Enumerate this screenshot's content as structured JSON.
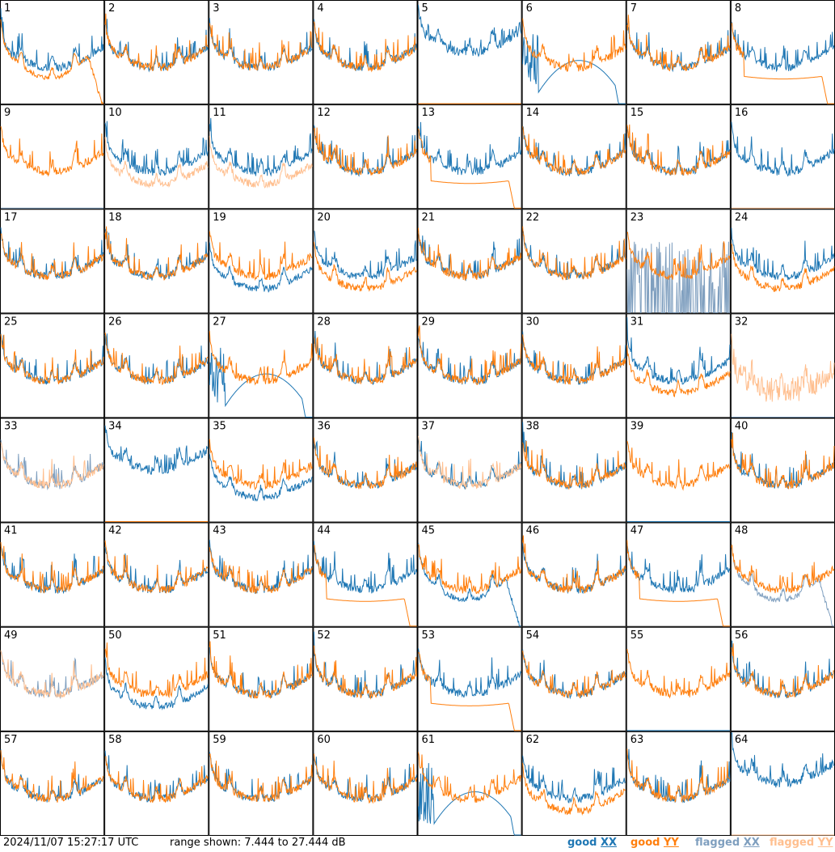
{
  "footer": {
    "timestamp": "2024/11/07 15:27:17 UTC",
    "range_text": "range shown: 7.444 to 27.444 dB"
  },
  "legend": [
    {
      "key": "good",
      "pol": "XX",
      "color": "#1f77b4"
    },
    {
      "key": "good",
      "pol": "YY",
      "color": "#ff7f0e"
    },
    {
      "key": "flagged",
      "pol": "XX",
      "color": "#7f9fbf"
    },
    {
      "key": "flagged",
      "pol": "YY",
      "color": "#ffbf8f"
    }
  ],
  "colors": {
    "good_xx": "#1f77b4",
    "good_yy": "#ff7f0e",
    "flagged_xx": "#7f9fbf",
    "flagged_yy": "#ffbf8f",
    "border": "#000000"
  },
  "chart_data": {
    "type": "line",
    "layout": "8x8 small multiples, one panel per antenna",
    "y_range_db": [
      7.444,
      27.444
    ],
    "x_axis": "frequency channel (unlabeled)",
    "series_names": [
      "XX",
      "YY"
    ],
    "panels": [
      {
        "label": "1",
        "xx": "good",
        "yy": "good",
        "xx_profile": "bandpass",
        "yy_profile": "sag_dropout"
      },
      {
        "label": "2",
        "xx": "good",
        "yy": "good",
        "xx_profile": "bandpass",
        "yy_profile": "bandpass"
      },
      {
        "label": "3",
        "xx": "good",
        "yy": "good",
        "xx_profile": "bandpass",
        "yy_profile": "bandpass"
      },
      {
        "label": "4",
        "xx": "good",
        "yy": "good",
        "xx_profile": "bandpass",
        "yy_profile": "bandpass"
      },
      {
        "label": "5",
        "xx": "good",
        "yy": "good",
        "xx_profile": "bandpass_high",
        "yy_profile": "spikes"
      },
      {
        "label": "6",
        "xx": "good",
        "yy": "good",
        "xx_profile": "broken_arc",
        "yy_profile": "bandpass"
      },
      {
        "label": "7",
        "xx": "good",
        "yy": "good",
        "xx_profile": "bandpass",
        "yy_profile": "bandpass"
      },
      {
        "label": "8",
        "xx": "good",
        "yy": "good",
        "xx_profile": "bandpass",
        "yy_profile": "flat_dropout"
      },
      {
        "label": "9",
        "xx": "flagged",
        "yy": "good",
        "xx_profile": "spikes",
        "yy_profile": "bandpass"
      },
      {
        "label": "10",
        "xx": "good",
        "yy": "flagged",
        "xx_profile": "bandpass",
        "yy_profile": "bandpass_low"
      },
      {
        "label": "11",
        "xx": "good",
        "yy": "flagged",
        "xx_profile": "bandpass",
        "yy_profile": "bandpass_low"
      },
      {
        "label": "12",
        "xx": "good",
        "yy": "good",
        "xx_profile": "bandpass",
        "yy_profile": "bandpass"
      },
      {
        "label": "13",
        "xx": "good",
        "yy": "good",
        "xx_profile": "bandpass",
        "yy_profile": "flat_dropout"
      },
      {
        "label": "14",
        "xx": "good",
        "yy": "good",
        "xx_profile": "bandpass",
        "yy_profile": "bandpass"
      },
      {
        "label": "15",
        "xx": "good",
        "yy": "good",
        "xx_profile": "bandpass",
        "yy_profile": "bandpass"
      },
      {
        "label": "16",
        "xx": "good",
        "yy": "flagged",
        "xx_profile": "bandpass",
        "yy_profile": "spikes"
      },
      {
        "label": "17",
        "xx": "good",
        "yy": "good",
        "xx_profile": "bandpass",
        "yy_profile": "bandpass"
      },
      {
        "label": "18",
        "xx": "good",
        "yy": "good",
        "xx_profile": "bandpass",
        "yy_profile": "bandpass"
      },
      {
        "label": "19",
        "xx": "good",
        "yy": "good",
        "xx_profile": "bandpass_low",
        "yy_profile": "bandpass"
      },
      {
        "label": "20",
        "xx": "good",
        "yy": "good",
        "xx_profile": "bandpass",
        "yy_profile": "bandpass_low"
      },
      {
        "label": "21",
        "xx": "good",
        "yy": "good",
        "xx_profile": "bandpass",
        "yy_profile": "bandpass"
      },
      {
        "label": "22",
        "xx": "good",
        "yy": "good",
        "xx_profile": "bandpass",
        "yy_profile": "bandpass"
      },
      {
        "label": "23",
        "xx": "flagged",
        "yy": "good",
        "xx_profile": "dense_spikes",
        "yy_profile": "bandpass"
      },
      {
        "label": "24",
        "xx": "good",
        "yy": "good",
        "xx_profile": "bandpass",
        "yy_profile": "bandpass_low"
      },
      {
        "label": "25",
        "xx": "good",
        "yy": "good",
        "xx_profile": "bandpass",
        "yy_profile": "bandpass"
      },
      {
        "label": "26",
        "xx": "good",
        "yy": "good",
        "xx_profile": "bandpass",
        "yy_profile": "bandpass"
      },
      {
        "label": "27",
        "xx": "good",
        "yy": "good",
        "xx_profile": "broken_arc",
        "yy_profile": "bandpass"
      },
      {
        "label": "28",
        "xx": "good",
        "yy": "good",
        "xx_profile": "bandpass",
        "yy_profile": "bandpass"
      },
      {
        "label": "29",
        "xx": "good",
        "yy": "good",
        "xx_profile": "bandpass",
        "yy_profile": "bandpass"
      },
      {
        "label": "30",
        "xx": "good",
        "yy": "good",
        "xx_profile": "bandpass",
        "yy_profile": "bandpass"
      },
      {
        "label": "31",
        "xx": "good",
        "yy": "good",
        "xx_profile": "bandpass",
        "yy_profile": "bandpass_low"
      },
      {
        "label": "32",
        "xx": "flagged",
        "yy": "flagged",
        "xx_profile": "spikes",
        "yy_profile": "bandpass_noisy"
      },
      {
        "label": "33",
        "xx": "flagged",
        "yy": "flagged",
        "xx_profile": "bandpass",
        "yy_profile": "bandpass"
      },
      {
        "label": "34",
        "xx": "good",
        "yy": "good",
        "xx_profile": "bandpass_high",
        "yy_profile": "spikes"
      },
      {
        "label": "35",
        "xx": "good",
        "yy": "good",
        "xx_profile": "bandpass_low",
        "yy_profile": "bandpass"
      },
      {
        "label": "36",
        "xx": "good",
        "yy": "good",
        "xx_profile": "bandpass",
        "yy_profile": "bandpass"
      },
      {
        "label": "37",
        "xx": "good",
        "yy": "flagged",
        "xx_profile": "bandpass",
        "yy_profile": "bandpass"
      },
      {
        "label": "38",
        "xx": "good",
        "yy": "good",
        "xx_profile": "bandpass",
        "yy_profile": "bandpass"
      },
      {
        "label": "39",
        "xx": "good",
        "yy": "good",
        "xx_profile": "spikes",
        "yy_profile": "bandpass"
      },
      {
        "label": "40",
        "xx": "good",
        "yy": "good",
        "xx_profile": "bandpass",
        "yy_profile": "bandpass"
      },
      {
        "label": "41",
        "xx": "good",
        "yy": "good",
        "xx_profile": "bandpass",
        "yy_profile": "bandpass"
      },
      {
        "label": "42",
        "xx": "good",
        "yy": "good",
        "xx_profile": "bandpass",
        "yy_profile": "bandpass"
      },
      {
        "label": "43",
        "xx": "good",
        "yy": "good",
        "xx_profile": "bandpass",
        "yy_profile": "bandpass"
      },
      {
        "label": "44",
        "xx": "good",
        "yy": "good",
        "xx_profile": "bandpass",
        "yy_profile": "flat_dropout"
      },
      {
        "label": "45",
        "xx": "good",
        "yy": "good",
        "xx_profile": "sag_dropout",
        "yy_profile": "bandpass"
      },
      {
        "label": "46",
        "xx": "good",
        "yy": "good",
        "xx_profile": "bandpass",
        "yy_profile": "bandpass"
      },
      {
        "label": "47",
        "xx": "good",
        "yy": "good",
        "xx_profile": "bandpass",
        "yy_profile": "flat_dropout"
      },
      {
        "label": "48",
        "xx": "flagged",
        "yy": "good",
        "xx_profile": "sag_dropout",
        "yy_profile": "bandpass"
      },
      {
        "label": "49",
        "xx": "flagged",
        "yy": "flagged",
        "xx_profile": "bandpass",
        "yy_profile": "bandpass"
      },
      {
        "label": "50",
        "xx": "good",
        "yy": "good",
        "xx_profile": "bandpass_low",
        "yy_profile": "bandpass"
      },
      {
        "label": "51",
        "xx": "good",
        "yy": "good",
        "xx_profile": "bandpass",
        "yy_profile": "bandpass"
      },
      {
        "label": "52",
        "xx": "good",
        "yy": "good",
        "xx_profile": "bandpass",
        "yy_profile": "bandpass"
      },
      {
        "label": "53",
        "xx": "good",
        "yy": "good",
        "xx_profile": "bandpass",
        "yy_profile": "flat_dropout"
      },
      {
        "label": "54",
        "xx": "good",
        "yy": "good",
        "xx_profile": "bandpass",
        "yy_profile": "bandpass"
      },
      {
        "label": "55",
        "xx": "good",
        "yy": "good",
        "xx_profile": "spikes",
        "yy_profile": "bandpass"
      },
      {
        "label": "56",
        "xx": "good",
        "yy": "good",
        "xx_profile": "bandpass",
        "yy_profile": "bandpass"
      },
      {
        "label": "57",
        "xx": "good",
        "yy": "good",
        "xx_profile": "bandpass",
        "yy_profile": "bandpass"
      },
      {
        "label": "58",
        "xx": "good",
        "yy": "good",
        "xx_profile": "bandpass",
        "yy_profile": "bandpass"
      },
      {
        "label": "59",
        "xx": "good",
        "yy": "good",
        "xx_profile": "bandpass",
        "yy_profile": "bandpass"
      },
      {
        "label": "60",
        "xx": "good",
        "yy": "good",
        "xx_profile": "bandpass",
        "yy_profile": "bandpass"
      },
      {
        "label": "61",
        "xx": "good",
        "yy": "good",
        "xx_profile": "broken_arc",
        "yy_profile": "bandpass"
      },
      {
        "label": "62",
        "xx": "good",
        "yy": "good",
        "xx_profile": "bandpass",
        "yy_profile": "bandpass_low"
      },
      {
        "label": "63",
        "xx": "good",
        "yy": "good",
        "xx_profile": "bandpass",
        "yy_profile": "bandpass"
      },
      {
        "label": "64",
        "xx": "good",
        "yy": "flagged",
        "xx_profile": "bandpass_high",
        "yy_profile": "spikes"
      }
    ]
  }
}
